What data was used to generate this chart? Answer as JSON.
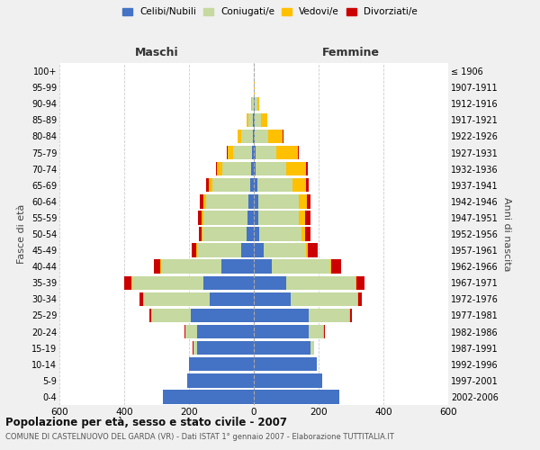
{
  "age_groups": [
    "0-4",
    "5-9",
    "10-14",
    "15-19",
    "20-24",
    "25-29",
    "30-34",
    "35-39",
    "40-44",
    "45-49",
    "50-54",
    "55-59",
    "60-64",
    "65-69",
    "70-74",
    "75-79",
    "80-84",
    "85-89",
    "90-94",
    "95-99",
    "100+"
  ],
  "birth_years": [
    "2002-2006",
    "1997-2001",
    "1992-1996",
    "1987-1991",
    "1982-1986",
    "1977-1981",
    "1972-1976",
    "1967-1971",
    "1962-1966",
    "1957-1961",
    "1952-1956",
    "1947-1951",
    "1942-1946",
    "1937-1941",
    "1932-1936",
    "1927-1931",
    "1922-1926",
    "1917-1921",
    "1912-1916",
    "1907-1911",
    "≤ 1906"
  ],
  "males": {
    "celibi": [
      280,
      205,
      200,
      175,
      175,
      195,
      135,
      155,
      100,
      40,
      22,
      20,
      18,
      12,
      8,
      5,
      4,
      2,
      1,
      0,
      0
    ],
    "coniugati": [
      0,
      0,
      0,
      10,
      35,
      120,
      205,
      220,
      185,
      135,
      135,
      135,
      130,
      115,
      90,
      60,
      35,
      14,
      5,
      1,
      0
    ],
    "vedovi": [
      0,
      0,
      0,
      2,
      2,
      2,
      2,
      2,
      3,
      3,
      3,
      5,
      8,
      12,
      15,
      15,
      10,
      5,
      2,
      0,
      0
    ],
    "divorziati": [
      0,
      0,
      0,
      2,
      2,
      5,
      10,
      22,
      20,
      15,
      10,
      12,
      10,
      8,
      3,
      2,
      0,
      0,
      0,
      0,
      0
    ]
  },
  "females": {
    "nubili": [
      265,
      210,
      195,
      175,
      170,
      170,
      115,
      100,
      55,
      30,
      16,
      14,
      14,
      10,
      6,
      5,
      4,
      3,
      2,
      0,
      0
    ],
    "coniugate": [
      0,
      0,
      0,
      10,
      45,
      125,
      205,
      215,
      180,
      130,
      130,
      125,
      125,
      110,
      95,
      65,
      40,
      18,
      8,
      1,
      0
    ],
    "vedove": [
      0,
      0,
      0,
      0,
      2,
      2,
      3,
      3,
      5,
      8,
      12,
      20,
      25,
      40,
      60,
      65,
      45,
      22,
      8,
      1,
      0
    ],
    "divorziate": [
      0,
      0,
      0,
      0,
      2,
      5,
      10,
      25,
      30,
      30,
      18,
      15,
      12,
      10,
      5,
      5,
      2,
      0,
      0,
      0,
      0
    ]
  },
  "colors": {
    "celibi": "#4472c4",
    "coniugati": "#c5d9a0",
    "vedovi": "#ffc000",
    "divorziati": "#cc0000"
  },
  "xlim": 600,
  "title": "Popolazione per età, sesso e stato civile - 2007",
  "subtitle": "COMUNE DI CASTELNUOVO DEL GARDA (VR) - Dati ISTAT 1° gennaio 2007 - Elaborazione TUTTITALIA.IT",
  "ylabel": "Fasce di età",
  "right_ylabel": "Anni di nascita",
  "maschi_label": "Maschi",
  "femmine_label": "Femmine",
  "legend_labels": [
    "Celibi/Nubili",
    "Coniugati/e",
    "Vedovi/e",
    "Divorziati/e"
  ],
  "bg_color": "#f0f0f0",
  "plot_bg_color": "#ffffff"
}
